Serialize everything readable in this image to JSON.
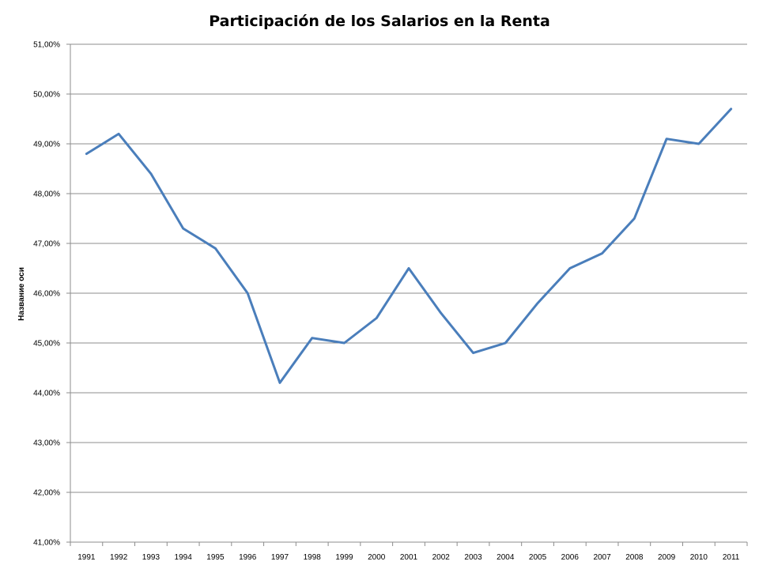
{
  "chart_data": {
    "type": "line",
    "title": "Participación de los Salarios en la Renta",
    "xlabel": "",
    "ylabel": "Название оси",
    "categories": [
      "1991",
      "1992",
      "1993",
      "1994",
      "1995",
      "1996",
      "1997",
      "1998",
      "1999",
      "2000",
      "2001",
      "2002",
      "2003",
      "2004",
      "2005",
      "2006",
      "2007",
      "2008",
      "2009",
      "2010",
      "2011"
    ],
    "series": [
      {
        "values": [
          48.8,
          49.2,
          48.4,
          47.3,
          46.9,
          46.0,
          44.2,
          45.1,
          45.0,
          45.5,
          46.5,
          45.6,
          44.8,
          45.0,
          45.8,
          46.5,
          46.8,
          47.5,
          49.1,
          49.0,
          49.7
        ],
        "color": "#4a7ebb"
      }
    ],
    "ylim": [
      41,
      51
    ],
    "yticks": [
      "41,00%",
      "42,00%",
      "43,00%",
      "44,00%",
      "45,00%",
      "46,00%",
      "47,00%",
      "48,00%",
      "49,00%",
      "50,00%",
      "51,00%"
    ],
    "grid": true,
    "legend": "none"
  }
}
